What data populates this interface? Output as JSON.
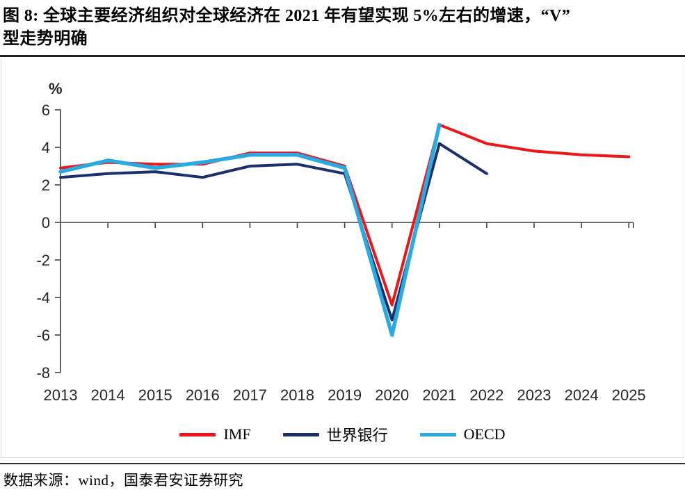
{
  "title": {
    "line1": "图 8:  全球主要经济组织对全球经济在 2021 年有望实现 5%左右的增速，“V”",
    "line2": "型走势明确"
  },
  "footer": {
    "source_text": "数据来源：wind，国泰君安证券研究"
  },
  "chart_data": {
    "type": "line",
    "unit_label": "%",
    "x": [
      2013,
      2014,
      2015,
      2016,
      2017,
      2018,
      2019,
      2020,
      2021,
      2022,
      2023,
      2024,
      2025
    ],
    "xtick_labels": [
      "2013",
      "2014",
      "2015",
      "2016",
      "2017",
      "2018",
      "2019",
      "2020",
      "2021",
      "2022",
      "2023",
      "2024",
      "2025"
    ],
    "ytick_values": [
      6,
      4,
      2,
      0,
      -2,
      -4,
      -6,
      -8
    ],
    "ylim": [
      -8,
      6
    ],
    "grid": false,
    "legend_position": "bottom",
    "axis_color": "#3f3f3f",
    "tick_label_color": "#262626",
    "series": [
      {
        "name": "IMF",
        "color": "#ee1517",
        "values": [
          2.9,
          3.2,
          3.1,
          3.1,
          3.7,
          3.7,
          3.0,
          -4.4,
          5.2,
          4.2,
          3.8,
          3.6,
          3.5
        ]
      },
      {
        "name": "世界银行",
        "color": "#1a2f6b",
        "values": [
          2.4,
          2.6,
          2.7,
          2.4,
          3.0,
          3.1,
          2.6,
          -5.2,
          4.2,
          2.6
        ]
      },
      {
        "name": "OECD",
        "color": "#29abe2",
        "values": [
          2.7,
          3.3,
          2.9,
          3.2,
          3.6,
          3.6,
          2.9,
          -6.0,
          5.2
        ]
      }
    ]
  }
}
